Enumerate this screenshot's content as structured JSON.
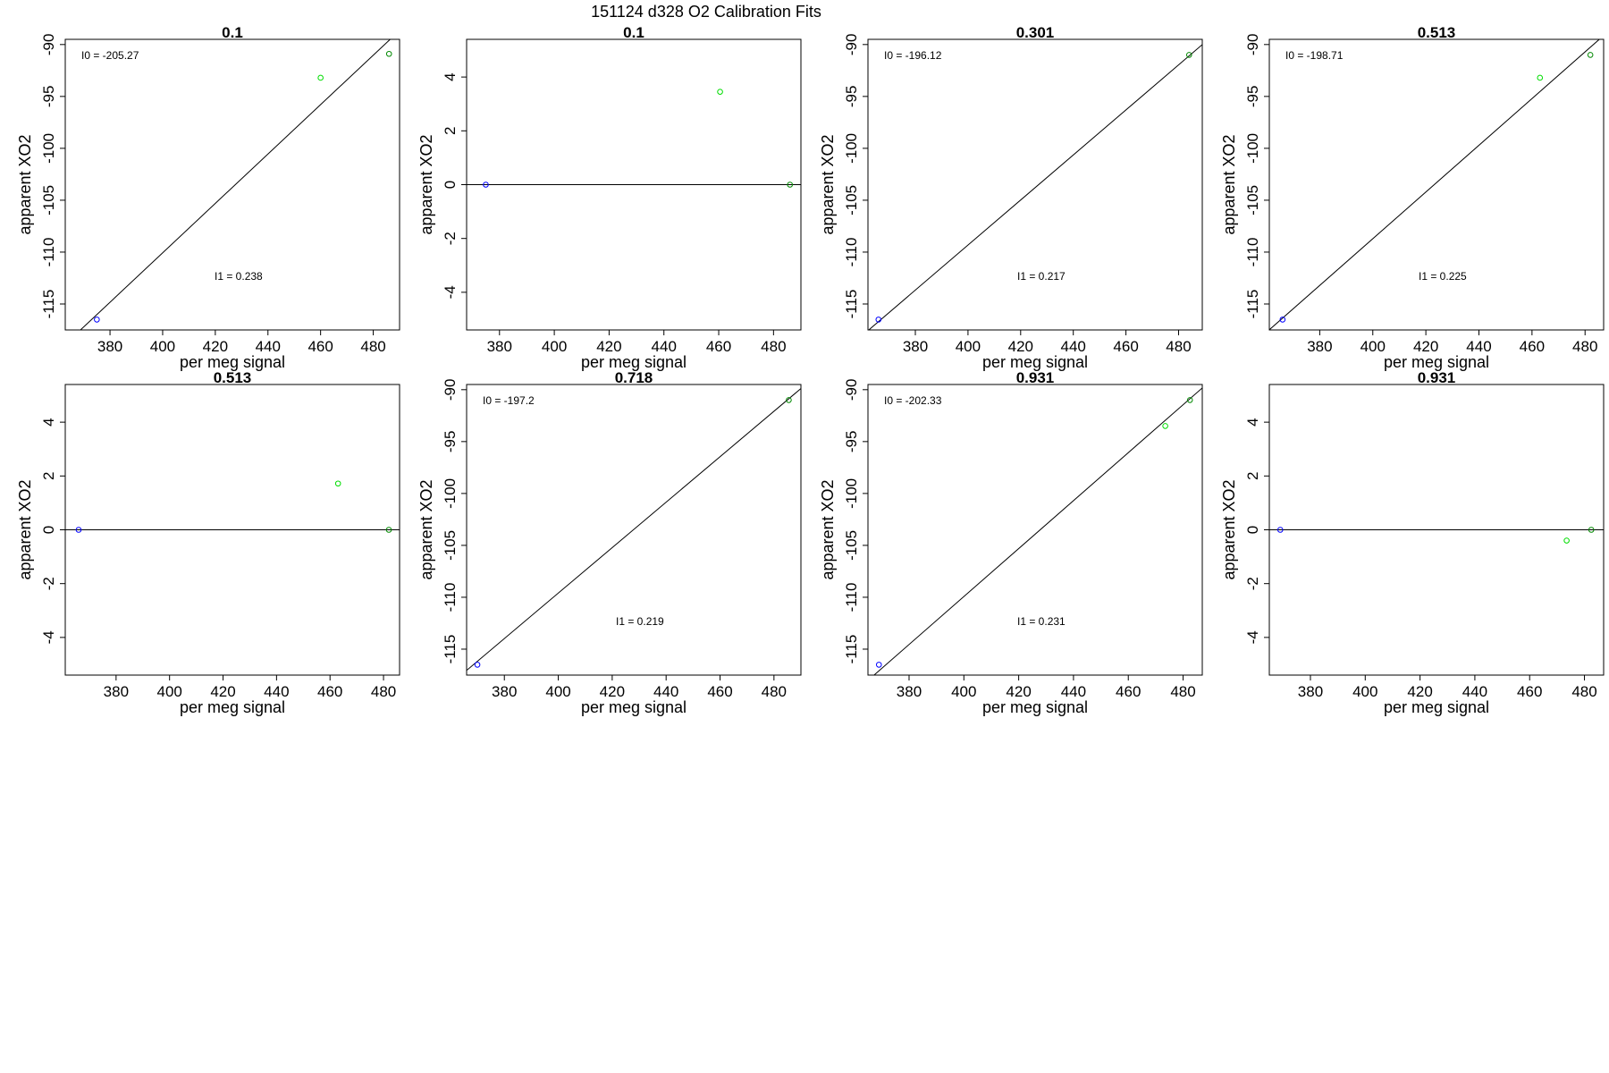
{
  "main_title": "151124   d328   O2 Calibration Fits",
  "chart_data": [
    {
      "type": "scatter",
      "title": "0.1",
      "xlabel": "per meg signal",
      "ylabel": "apparent XO2",
      "xlim": [
        363,
        490
      ],
      "ylim": [
        -117.5,
        -89.5
      ],
      "xticks": [
        380,
        400,
        420,
        440,
        460,
        480
      ],
      "yticks": [
        -90,
        -95,
        -100,
        -105,
        -110,
        -115
      ],
      "points": [
        {
          "x": 375,
          "y": -116.5,
          "color": "#0000ff"
        },
        {
          "x": 460,
          "y": -93.2,
          "color": "#00dd00"
        },
        {
          "x": 486,
          "y": -90.9,
          "color": "#008800"
        }
      ],
      "line": {
        "kind": "fit",
        "slope": 0.238,
        "intercept": -205.27
      },
      "annotations": [
        {
          "label": "I0 = ",
          "value": "-205.27",
          "pos": "top-left"
        },
        {
          "label": "I1 = ",
          "value": "0.238",
          "pos": "center-bottom"
        }
      ]
    },
    {
      "type": "scatter",
      "title": "0.1",
      "xlabel": "per meg signal",
      "ylabel": "apparent XO2",
      "xlim": [
        368,
        490
      ],
      "ylim": [
        -5.4,
        5.4
      ],
      "xticks": [
        380,
        400,
        420,
        440,
        460,
        480
      ],
      "yticks": [
        4,
        2,
        0,
        -2,
        -4
      ],
      "points": [
        {
          "x": 375,
          "y": 0,
          "color": "#0000ff"
        },
        {
          "x": 460.5,
          "y": 3.45,
          "color": "#00dd00"
        },
        {
          "x": 486,
          "y": 0,
          "color": "#008800"
        }
      ],
      "line": {
        "kind": "hline",
        "y": 0
      },
      "annotations": []
    },
    {
      "type": "scatter",
      "title": "0.301",
      "xlabel": "per meg signal",
      "ylabel": "apparent XO2",
      "xlim": [
        362,
        489
      ],
      "ylim": [
        -117.5,
        -89.5
      ],
      "xticks": [
        380,
        400,
        420,
        440,
        460,
        480
      ],
      "yticks": [
        -90,
        -95,
        -100,
        -105,
        -110,
        -115
      ],
      "points": [
        {
          "x": 366,
          "y": -116.5,
          "color": "#0000ff"
        },
        {
          "x": 484,
          "y": -91,
          "color": "#008800"
        }
      ],
      "line": {
        "kind": "fit",
        "slope": 0.217,
        "intercept": -196.12
      },
      "annotations": [
        {
          "label": "I0 = ",
          "value": "-196.12",
          "pos": "top-left"
        },
        {
          "label": "I1 = ",
          "value": "0.217",
          "pos": "center-bottom"
        }
      ]
    },
    {
      "type": "scatter",
      "title": "0.513",
      "xlabel": "per meg signal",
      "ylabel": "apparent XO2",
      "xlim": [
        361,
        487
      ],
      "ylim": [
        -117.5,
        -89.5
      ],
      "xticks": [
        380,
        400,
        420,
        440,
        460,
        480
      ],
      "yticks": [
        -90,
        -95,
        -100,
        -105,
        -110,
        -115
      ],
      "points": [
        {
          "x": 366,
          "y": -116.5,
          "color": "#0000ff"
        },
        {
          "x": 463,
          "y": -93.2,
          "color": "#00dd00"
        },
        {
          "x": 482,
          "y": -91,
          "color": "#008800"
        }
      ],
      "line": {
        "kind": "fit",
        "slope": 0.225,
        "intercept": -198.71
      },
      "annotations": [
        {
          "label": "I0 = ",
          "value": "-198.71",
          "pos": "top-left"
        },
        {
          "label": "I1 = ",
          "value": "0.225",
          "pos": "center-bottom"
        }
      ]
    },
    {
      "type": "scatter",
      "title": "0.513",
      "xlabel": "per meg signal",
      "ylabel": "apparent XO2",
      "xlim": [
        361,
        486
      ],
      "ylim": [
        -5.4,
        5.4
      ],
      "xticks": [
        380,
        400,
        420,
        440,
        460,
        480
      ],
      "yticks": [
        4,
        2,
        0,
        -2,
        -4
      ],
      "points": [
        {
          "x": 366,
          "y": 0,
          "color": "#0000ff"
        },
        {
          "x": 463,
          "y": 1.72,
          "color": "#00dd00"
        },
        {
          "x": 482,
          "y": 0,
          "color": "#008800"
        }
      ],
      "line": {
        "kind": "hline",
        "y": 0
      },
      "annotations": []
    },
    {
      "type": "scatter",
      "title": "0.718",
      "xlabel": "per meg signal",
      "ylabel": "apparent XO2",
      "xlim": [
        366,
        490
      ],
      "ylim": [
        -117.5,
        -89.5
      ],
      "xticks": [
        380,
        400,
        420,
        440,
        460,
        480
      ],
      "yticks": [
        -90,
        -95,
        -100,
        -105,
        -110,
        -115
      ],
      "points": [
        {
          "x": 370,
          "y": -116.5,
          "color": "#0000ff"
        },
        {
          "x": 485.5,
          "y": -91,
          "color": "#008800"
        }
      ],
      "line": {
        "kind": "fit",
        "slope": 0.219,
        "intercept": -197.2
      },
      "annotations": [
        {
          "label": "I0 = ",
          "value": "-197.2",
          "pos": "top-left"
        },
        {
          "label": "I1 = ",
          "value": "0.219",
          "pos": "center-bottom"
        }
      ]
    },
    {
      "type": "scatter",
      "title": "0.931",
      "xlabel": "per meg signal",
      "ylabel": "apparent XO2",
      "xlim": [
        365,
        487
      ],
      "ylim": [
        -117.5,
        -89.5
      ],
      "xticks": [
        380,
        400,
        420,
        440,
        460,
        480
      ],
      "yticks": [
        -90,
        -95,
        -100,
        -105,
        -110,
        -115
      ],
      "points": [
        {
          "x": 369,
          "y": -116.5,
          "color": "#0000ff"
        },
        {
          "x": 473.5,
          "y": -93.5,
          "color": "#00dd00"
        },
        {
          "x": 482.5,
          "y": -91,
          "color": "#008800"
        }
      ],
      "line": {
        "kind": "fit",
        "slope": 0.231,
        "intercept": -202.33
      },
      "annotations": [
        {
          "label": "I0 = ",
          "value": "-202.33",
          "pos": "top-left"
        },
        {
          "label": "I1 = ",
          "value": "0.231",
          "pos": "center-bottom"
        }
      ]
    },
    {
      "type": "scatter",
      "title": "0.931",
      "xlabel": "per meg signal",
      "ylabel": "apparent XO2",
      "xlim": [
        365,
        487
      ],
      "ylim": [
        -5.4,
        5.4
      ],
      "xticks": [
        380,
        400,
        420,
        440,
        460,
        480
      ],
      "yticks": [
        4,
        2,
        0,
        -2,
        -4
      ],
      "points": [
        {
          "x": 369,
          "y": 0,
          "color": "#0000ff"
        },
        {
          "x": 473.5,
          "y": -0.4,
          "color": "#00dd00"
        },
        {
          "x": 482.5,
          "y": 0,
          "color": "#008800"
        }
      ],
      "line": {
        "kind": "hline",
        "y": 0
      },
      "annotations": []
    }
  ]
}
